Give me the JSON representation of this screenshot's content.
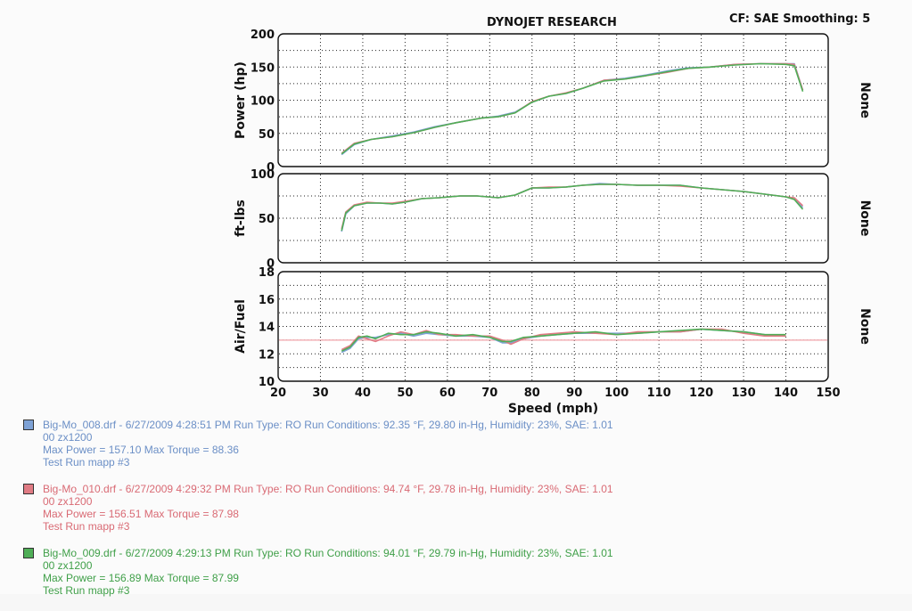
{
  "header": {
    "title": "DYNOJET RESEARCH",
    "settings": "CF: SAE  Smoothing: 5"
  },
  "colors": {
    "run1": "#7ea2d6",
    "run2": "#e07b84",
    "run3": "#4fae57",
    "afr_ref": "#f0a3a8",
    "grid": "#222222",
    "frame": "#111111"
  },
  "chart_data": [
    {
      "type": "line",
      "ylabel": "Power (hp)",
      "right_label": "None",
      "xlim": [
        20,
        150
      ],
      "ylim": [
        0,
        200
      ],
      "yticks": [
        0,
        50,
        100,
        150,
        200
      ],
      "series": [
        {
          "name": "Big-Mo_008.drf",
          "points": [
            [
              35,
              18
            ],
            [
              38,
              33
            ],
            [
              42,
              41
            ],
            [
              47,
              46
            ],
            [
              52,
              52
            ],
            [
              57,
              60
            ],
            [
              62,
              66
            ],
            [
              68,
              73
            ],
            [
              72,
              76
            ],
            [
              76,
              82
            ],
            [
              80,
              97
            ],
            [
              84,
              106
            ],
            [
              88,
              110
            ],
            [
              92,
              118
            ],
            [
              97,
              130
            ],
            [
              102,
              133
            ],
            [
              107,
              138
            ],
            [
              112,
              144
            ],
            [
              117,
              149
            ],
            [
              122,
              150
            ],
            [
              128,
              154
            ],
            [
              134,
              155
            ],
            [
              140,
              155
            ],
            [
              142,
              155
            ],
            [
              144,
              115
            ]
          ]
        },
        {
          "name": "Big-Mo_010.drf",
          "points": [
            [
              35,
              20
            ],
            [
              38,
              35
            ],
            [
              42,
              41
            ],
            [
              47,
              45
            ],
            [
              52,
              51
            ],
            [
              57,
              59
            ],
            [
              62,
              66
            ],
            [
              68,
              73
            ],
            [
              72,
              75
            ],
            [
              76,
              81
            ],
            [
              80,
              98
            ],
            [
              84,
              106
            ],
            [
              88,
              111
            ],
            [
              92,
              118
            ],
            [
              97,
              130
            ],
            [
              102,
              132
            ],
            [
              107,
              137
            ],
            [
              112,
              142
            ],
            [
              117,
              148
            ],
            [
              122,
              150
            ],
            [
              128,
              154
            ],
            [
              134,
              155
            ],
            [
              140,
              155
            ],
            [
              142,
              154
            ],
            [
              144,
              115
            ]
          ]
        },
        {
          "name": "Big-Mo_009.drf",
          "points": [
            [
              35,
              19
            ],
            [
              38,
              34
            ],
            [
              42,
              41
            ],
            [
              47,
              45
            ],
            [
              52,
              51
            ],
            [
              57,
              59
            ],
            [
              62,
              66
            ],
            [
              68,
              73
            ],
            [
              72,
              75
            ],
            [
              76,
              81
            ],
            [
              80,
              97
            ],
            [
              84,
              106
            ],
            [
              88,
              110
            ],
            [
              92,
              118
            ],
            [
              97,
              129
            ],
            [
              102,
              132
            ],
            [
              107,
              137
            ],
            [
              112,
              143
            ],
            [
              117,
              148
            ],
            [
              122,
              150
            ],
            [
              128,
              153
            ],
            [
              134,
              155
            ],
            [
              140,
              154
            ],
            [
              142,
              152
            ],
            [
              144,
              113
            ]
          ]
        }
      ]
    },
    {
      "type": "line",
      "ylabel": "ft-lbs",
      "right_label": "None",
      "xlim": [
        20,
        150
      ],
      "ylim": [
        0,
        100
      ],
      "yticks": [
        0,
        50,
        100
      ],
      "series": [
        {
          "name": "Big-Mo_008.drf",
          "points": [
            [
              35,
              35
            ],
            [
              36,
              55
            ],
            [
              38,
              64
            ],
            [
              41,
              67
            ],
            [
              44,
              67
            ],
            [
              47,
              66
            ],
            [
              50,
              68
            ],
            [
              54,
              72
            ],
            [
              58,
              73
            ],
            [
              63,
              75
            ],
            [
              67,
              75
            ],
            [
              72,
              73
            ],
            [
              76,
              76
            ],
            [
              80,
              84
            ],
            [
              84,
              84
            ],
            [
              88,
              85
            ],
            [
              92,
              87
            ],
            [
              96,
              89
            ],
            [
              100,
              88
            ],
            [
              105,
              87
            ],
            [
              110,
              87
            ],
            [
              115,
              87
            ],
            [
              120,
              84
            ],
            [
              125,
              82
            ],
            [
              130,
              80
            ],
            [
              135,
              77
            ],
            [
              140,
              74
            ],
            [
              142,
              72
            ],
            [
              144,
              62
            ]
          ]
        },
        {
          "name": "Big-Mo_010.drf",
          "points": [
            [
              35,
              38
            ],
            [
              36,
              57
            ],
            [
              38,
              65
            ],
            [
              41,
              68
            ],
            [
              44,
              67
            ],
            [
              47,
              67
            ],
            [
              50,
              69
            ],
            [
              54,
              72
            ],
            [
              58,
              73
            ],
            [
              63,
              75
            ],
            [
              67,
              75
            ],
            [
              72,
              73
            ],
            [
              76,
              76
            ],
            [
              80,
              84
            ],
            [
              84,
              85
            ],
            [
              88,
              85
            ],
            [
              92,
              87
            ],
            [
              96,
              88
            ],
            [
              100,
              88
            ],
            [
              105,
              87
            ],
            [
              110,
              87
            ],
            [
              115,
              86
            ],
            [
              120,
              84
            ],
            [
              125,
              82
            ],
            [
              130,
              80
            ],
            [
              135,
              77
            ],
            [
              140,
              74
            ],
            [
              142,
              73
            ],
            [
              144,
              64
            ]
          ]
        },
        {
          "name": "Big-Mo_009.drf",
          "points": [
            [
              35,
              36
            ],
            [
              36,
              56
            ],
            [
              38,
              64
            ],
            [
              41,
              67
            ],
            [
              44,
              67
            ],
            [
              47,
              66
            ],
            [
              50,
              68
            ],
            [
              54,
              72
            ],
            [
              58,
              73
            ],
            [
              63,
              75
            ],
            [
              67,
              75
            ],
            [
              72,
              73
            ],
            [
              76,
              76
            ],
            [
              80,
              84
            ],
            [
              84,
              84
            ],
            [
              88,
              85
            ],
            [
              92,
              87
            ],
            [
              96,
              88
            ],
            [
              100,
              88
            ],
            [
              105,
              87
            ],
            [
              110,
              87
            ],
            [
              115,
              87
            ],
            [
              120,
              84
            ],
            [
              125,
              82
            ],
            [
              130,
              80
            ],
            [
              135,
              77
            ],
            [
              140,
              74
            ],
            [
              142,
              71
            ],
            [
              144,
              60
            ]
          ]
        }
      ]
    },
    {
      "type": "line",
      "ylabel": "Air/Fuel",
      "right_label": "None",
      "xlabel": "Speed (mph)",
      "xlim": [
        20,
        150
      ],
      "ylim": [
        10,
        18
      ],
      "yticks": [
        10,
        12,
        14,
        16,
        18
      ],
      "xticks": [
        20,
        30,
        40,
        50,
        60,
        70,
        80,
        90,
        100,
        110,
        120,
        130,
        140,
        150
      ],
      "reference_line": 13.0,
      "series": [
        {
          "name": "Big-Mo_008.drf",
          "points": [
            [
              35,
              12.1
            ],
            [
              37,
              12.4
            ],
            [
              39,
              13.1
            ],
            [
              41,
              13.2
            ],
            [
              43,
              13.2
            ],
            [
              46,
              13.4
            ],
            [
              49,
              13.5
            ],
            [
              52,
              13.3
            ],
            [
              55,
              13.5
            ],
            [
              58,
              13.4
            ],
            [
              62,
              13.3
            ],
            [
              66,
              13.3
            ],
            [
              70,
              13.2
            ],
            [
              73,
              12.8
            ],
            [
              75,
              12.8
            ],
            [
              78,
              13.1
            ],
            [
              82,
              13.3
            ],
            [
              86,
              13.4
            ],
            [
              90,
              13.5
            ],
            [
              95,
              13.5
            ],
            [
              100,
              13.5
            ],
            [
              105,
              13.5
            ],
            [
              110,
              13.6
            ],
            [
              115,
              13.6
            ],
            [
              120,
              13.8
            ],
            [
              125,
              13.7
            ],
            [
              130,
              13.6
            ],
            [
              135,
              13.4
            ],
            [
              140,
              13.3
            ]
          ]
        },
        {
          "name": "Big-Mo_010.drf",
          "points": [
            [
              35,
              12.3
            ],
            [
              37,
              12.6
            ],
            [
              39,
              13.3
            ],
            [
              41,
              13.1
            ],
            [
              43,
              12.9
            ],
            [
              46,
              13.3
            ],
            [
              49,
              13.6
            ],
            [
              52,
              13.4
            ],
            [
              55,
              13.7
            ],
            [
              58,
              13.4
            ],
            [
              62,
              13.4
            ],
            [
              66,
              13.3
            ],
            [
              70,
              13.3
            ],
            [
              73,
              13.0
            ],
            [
              75,
              12.7
            ],
            [
              78,
              13.1
            ],
            [
              82,
              13.4
            ],
            [
              86,
              13.5
            ],
            [
              90,
              13.6
            ],
            [
              95,
              13.5
            ],
            [
              100,
              13.4
            ],
            [
              105,
              13.6
            ],
            [
              110,
              13.6
            ],
            [
              115,
              13.6
            ],
            [
              120,
              13.8
            ],
            [
              125,
              13.8
            ],
            [
              130,
              13.5
            ],
            [
              135,
              13.3
            ],
            [
              140,
              13.3
            ]
          ]
        },
        {
          "name": "Big-Mo_009.drf",
          "points": [
            [
              35,
              12.2
            ],
            [
              37,
              12.5
            ],
            [
              39,
              13.2
            ],
            [
              41,
              13.3
            ],
            [
              43,
              13.1
            ],
            [
              46,
              13.5
            ],
            [
              49,
              13.4
            ],
            [
              52,
              13.4
            ],
            [
              55,
              13.6
            ],
            [
              58,
              13.5
            ],
            [
              62,
              13.3
            ],
            [
              66,
              13.4
            ],
            [
              70,
              13.2
            ],
            [
              73,
              12.9
            ],
            [
              75,
              12.9
            ],
            [
              78,
              13.2
            ],
            [
              82,
              13.3
            ],
            [
              86,
              13.4
            ],
            [
              90,
              13.5
            ],
            [
              95,
              13.6
            ],
            [
              100,
              13.4
            ],
            [
              105,
              13.5
            ],
            [
              110,
              13.6
            ],
            [
              115,
              13.7
            ],
            [
              120,
              13.8
            ],
            [
              125,
              13.7
            ],
            [
              130,
              13.6
            ],
            [
              135,
              13.4
            ],
            [
              140,
              13.4
            ]
          ]
        }
      ]
    }
  ],
  "legend": [
    {
      "color_key": "run1",
      "line1": "Big-Mo_008.drf - 6/27/2009 4:28:51 PM  Run Type: RO  Run Conditions: 92.35 °F, 29.80 in-Hg,  Humidity: 23%, SAE: 1.01",
      "line2": "00 zx1200",
      "line3": "Max Power = 157.10  Max Torque = 88.36",
      "line4": "Test Run  mapp #3"
    },
    {
      "color_key": "run2",
      "line1": "Big-Mo_010.drf - 6/27/2009 4:29:32 PM  Run Type: RO  Run Conditions: 94.74 °F, 29.78 in-Hg,  Humidity: 23%, SAE: 1.01",
      "line2": "00 zx1200",
      "line3": "Max Power = 156.51  Max Torque = 87.98",
      "line4": "Test Run  mapp #3"
    },
    {
      "color_key": "run3",
      "line1": "Big-Mo_009.drf - 6/27/2009 4:29:13 PM  Run Type: RO  Run Conditions: 94.01 °F, 29.79 in-Hg,  Humidity: 23%, SAE: 1.01",
      "line2": "00 zx1200",
      "line3": "Max Power = 156.89  Max Torque = 87.99",
      "line4": "Test Run  mapp #3"
    }
  ]
}
